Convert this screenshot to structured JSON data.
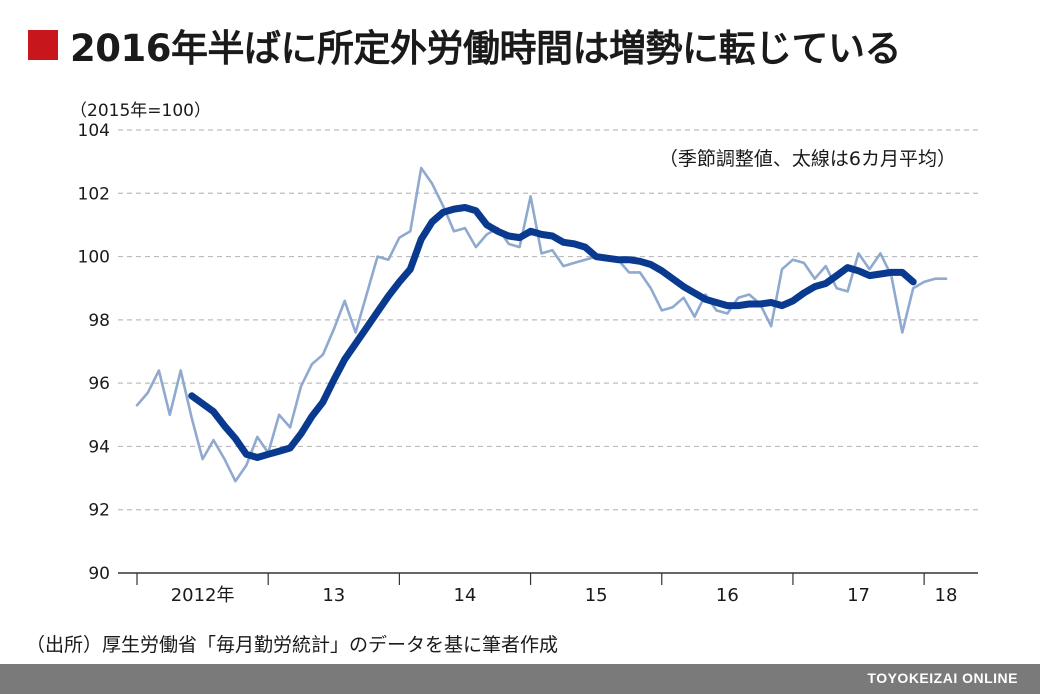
{
  "title": "2016年半ばに所定外労働時間は増勢に転じている",
  "unit": "（2015年=100）",
  "note": "（季節調整値、太線は6カ月平均）",
  "source": "（出所）厚生労働省「毎月勤労統計」のデータを基に筆者作成",
  "brand": "TOYOKEIZAI ONLINE",
  "colors": {
    "accent": "#c8161d",
    "thin_line": "#8fa9cf",
    "thick_line": "#0a3a8f",
    "grid": "#bdbdbd"
  },
  "chart_data": {
    "type": "line",
    "ylim": [
      90,
      104
    ],
    "yticks": [
      90,
      92,
      94,
      96,
      98,
      100,
      102,
      104
    ],
    "grid": true,
    "x_start_index": 0,
    "x_end_index": 61,
    "x_year_labels": [
      {
        "label": "2012年",
        "index": 6
      },
      {
        "label": "13",
        "index": 18
      },
      {
        "label": "14",
        "index": 30
      },
      {
        "label": "15",
        "index": 42
      },
      {
        "label": "16",
        "index": 54
      },
      {
        "label": "17",
        "index": 66
      },
      {
        "label": "18",
        "index": 74
      }
    ],
    "year_dividers": [
      0,
      12,
      24,
      36,
      48,
      60,
      72
    ],
    "series": [
      {
        "style": "thin",
        "x": [
          0,
          1,
          2,
          3,
          4,
          5,
          6,
          7,
          8,
          9,
          10,
          11,
          12,
          13,
          14,
          15,
          16,
          17,
          18,
          19,
          20,
          21,
          22,
          23,
          24,
          25,
          26,
          27,
          28,
          29,
          30,
          31,
          32,
          33,
          34,
          35,
          36,
          37,
          38,
          39,
          40,
          41,
          42,
          43,
          44,
          45,
          46,
          47,
          48,
          49,
          50,
          51,
          52,
          53,
          54,
          55,
          56,
          57,
          58,
          59,
          60,
          61,
          62,
          63,
          64,
          65,
          66,
          67,
          68,
          69,
          70,
          71,
          72,
          73,
          74
        ],
        "values": [
          95.3,
          95.7,
          96.4,
          95.0,
          96.4,
          94.9,
          93.6,
          94.2,
          93.6,
          92.9,
          93.4,
          94.3,
          93.8,
          95.0,
          94.6,
          95.9,
          96.6,
          96.9,
          97.7,
          98.6,
          97.6,
          98.8,
          100.0,
          99.9,
          100.6,
          100.8,
          102.8,
          102.3,
          101.6,
          100.8,
          100.9,
          100.3,
          100.7,
          100.9,
          100.4,
          100.3,
          101.9,
          100.1,
          100.2,
          99.7,
          99.8,
          99.9,
          100.0,
          99.9,
          99.9,
          99.5,
          99.5,
          99.0,
          98.3,
          98.4,
          98.7,
          98.1,
          98.8,
          98.3,
          98.2,
          98.7,
          98.8,
          98.5,
          97.8,
          99.6,
          99.9,
          99.8,
          99.3,
          99.7,
          99.0,
          98.9,
          100.1,
          99.6,
          100.1,
          99.4,
          97.6,
          99.0,
          99.2,
          99.3,
          99.3
        ]
      },
      {
        "style": "thick",
        "x": [
          5,
          6,
          7,
          8,
          9,
          10,
          11,
          12,
          13,
          14,
          15,
          16,
          17,
          18,
          19,
          20,
          21,
          22,
          23,
          24,
          25,
          26,
          27,
          28,
          29,
          30,
          31,
          32,
          33,
          34,
          35,
          36,
          37,
          38,
          39,
          40,
          41,
          42,
          43,
          44,
          45,
          46,
          47,
          48,
          49,
          50,
          51,
          52,
          53,
          54,
          55,
          56,
          57,
          58,
          59,
          60,
          61,
          62,
          63,
          64,
          65,
          66,
          67,
          68,
          69,
          70,
          71
        ],
        "values": [
          95.6,
          95.35,
          95.1,
          94.65,
          94.25,
          93.75,
          93.65,
          93.75,
          93.85,
          93.95,
          94.4,
          94.95,
          95.4,
          96.1,
          96.75,
          97.25,
          97.75,
          98.25,
          98.75,
          99.2,
          99.6,
          100.55,
          101.1,
          101.4,
          101.5,
          101.55,
          101.45,
          101.0,
          100.8,
          100.65,
          100.6,
          100.8,
          100.7,
          100.65,
          100.45,
          100.4,
          100.3,
          100.0,
          99.95,
          99.9,
          99.9,
          99.85,
          99.75,
          99.55,
          99.3,
          99.05,
          98.85,
          98.65,
          98.55,
          98.45,
          98.45,
          98.5,
          98.5,
          98.55,
          98.45,
          98.6,
          98.85,
          99.05,
          99.15,
          99.4,
          99.65,
          99.55,
          99.4,
          99.45,
          99.5,
          99.5,
          99.2
        ]
      }
    ]
  }
}
